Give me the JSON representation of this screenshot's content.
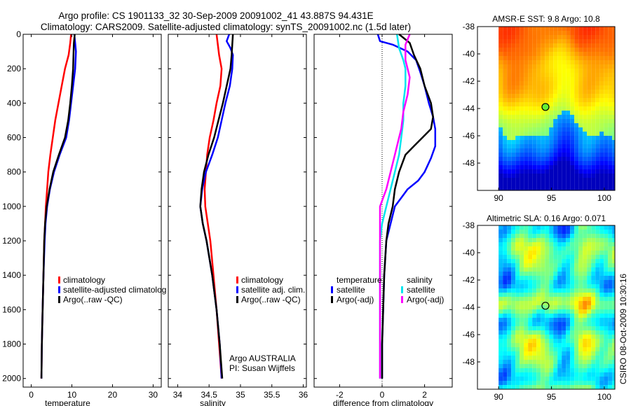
{
  "header": {
    "line1": "Argo profile: CS 1901133_32 30-Sep-2009 20091002_41 43.887S 94.431E",
    "line2": "Climatology: CARS2009. Satellite-adjusted climatology: synTS_20091002.nc (1.5d later)"
  },
  "footer_note": "CSIRO 08-Oct-2009 10:30:16",
  "colors": {
    "climatology": "#ff0000",
    "satellite": "#0000ff",
    "argo": "#000000",
    "sal_satellite": "#00e5ee",
    "sal_argo": "#ff00ff",
    "float_marker": "#66ee33"
  },
  "chart_data": [
    {
      "type": "line",
      "panel": "temperature",
      "xlabel": "temperature",
      "ylabel": "",
      "xlim": [
        -2,
        32
      ],
      "ylim": [
        2050,
        0
      ],
      "xticks": [
        0,
        10,
        20,
        30
      ],
      "yticks": [
        0,
        200,
        400,
        600,
        800,
        1000,
        1200,
        1400,
        1600,
        1800,
        2000
      ],
      "legend": [
        "climatology",
        "satellite-adjusted climatolog",
        "Argo(..raw -QC)"
      ],
      "series": [
        {
          "name": "climatology",
          "color_key": "climatology",
          "points": [
            [
              9.8,
              0
            ],
            [
              9.6,
              50
            ],
            [
              9.2,
              120
            ],
            [
              8.3,
              200
            ],
            [
              7.5,
              300
            ],
            [
              6.7,
              400
            ],
            [
              5.9,
              500
            ],
            [
              5.3,
              600
            ],
            [
              4.7,
              700
            ],
            [
              4.2,
              800
            ],
            [
              3.9,
              900
            ],
            [
              3.6,
              1000
            ],
            [
              3.4,
              1100
            ],
            [
              3.2,
              1200
            ],
            [
              3.0,
              1400
            ],
            [
              2.8,
              1600
            ],
            [
              2.6,
              1800
            ],
            [
              2.5,
              2000
            ]
          ]
        },
        {
          "name": "satellite-adjusted climatolog",
          "color_key": "satellite",
          "points": [
            [
              10.6,
              0
            ],
            [
              10.8,
              50
            ],
            [
              11.0,
              100
            ],
            [
              10.8,
              200
            ],
            [
              10.3,
              300
            ],
            [
              9.8,
              400
            ],
            [
              9.3,
              500
            ],
            [
              8.6,
              600
            ],
            [
              7.0,
              700
            ],
            [
              5.6,
              800
            ],
            [
              4.6,
              900
            ],
            [
              3.9,
              1000
            ],
            [
              3.5,
              1100
            ],
            [
              3.3,
              1200
            ],
            [
              3.0,
              1400
            ],
            [
              2.8,
              1600
            ],
            [
              2.6,
              1800
            ],
            [
              2.5,
              2000
            ]
          ]
        },
        {
          "name": "Argo(..raw -QC)",
          "color_key": "argo",
          "points": [
            [
              10.7,
              0
            ],
            [
              10.5,
              50
            ],
            [
              10.4,
              120
            ],
            [
              10.3,
              200
            ],
            [
              10.0,
              300
            ],
            [
              9.6,
              400
            ],
            [
              9.1,
              500
            ],
            [
              8.3,
              600
            ],
            [
              6.8,
              700
            ],
            [
              5.4,
              800
            ],
            [
              4.5,
              900
            ],
            [
              3.8,
              1000
            ],
            [
              3.4,
              1100
            ],
            [
              3.2,
              1200
            ],
            [
              3.0,
              1400
            ],
            [
              2.8,
              1600
            ],
            [
              2.6,
              1800
            ],
            [
              2.5,
              2000
            ]
          ]
        }
      ]
    },
    {
      "type": "line",
      "panel": "salinity",
      "xlabel": "salinity",
      "xlim": [
        33.85,
        36.05
      ],
      "ylim": [
        2050,
        0
      ],
      "xticks": [
        34,
        34.5,
        35,
        35.5,
        36
      ],
      "legend": [
        "climatology",
        "satellite adj. clim.",
        "Argo(..raw -QC)"
      ],
      "annotation": [
        "Argo AUSTRALIA",
        "PI: Susan Wijffels"
      ],
      "series": [
        {
          "name": "climatology",
          "color_key": "climatology",
          "points": [
            [
              34.62,
              0
            ],
            [
              34.64,
              60
            ],
            [
              34.66,
              120
            ],
            [
              34.7,
              200
            ],
            [
              34.68,
              300
            ],
            [
              34.62,
              400
            ],
            [
              34.57,
              500
            ],
            [
              34.51,
              600
            ],
            [
              34.47,
              700
            ],
            [
              34.45,
              800
            ],
            [
              34.43,
              900
            ],
            [
              34.44,
              1000
            ],
            [
              34.48,
              1100
            ],
            [
              34.52,
              1200
            ],
            [
              34.57,
              1400
            ],
            [
              34.62,
              1600
            ],
            [
              34.66,
              1800
            ],
            [
              34.7,
              2000
            ]
          ]
        },
        {
          "name": "satellite adj. clim.",
          "color_key": "satellite",
          "points": [
            [
              34.82,
              0
            ],
            [
              34.78,
              40
            ],
            [
              34.84,
              80
            ],
            [
              34.88,
              120
            ],
            [
              34.87,
              200
            ],
            [
              34.83,
              300
            ],
            [
              34.76,
              400
            ],
            [
              34.7,
              500
            ],
            [
              34.64,
              600
            ],
            [
              34.55,
              700
            ],
            [
              34.45,
              800
            ],
            [
              34.39,
              900
            ],
            [
              34.36,
              1000
            ],
            [
              34.4,
              1100
            ],
            [
              34.46,
              1200
            ],
            [
              34.55,
              1400
            ],
            [
              34.62,
              1600
            ],
            [
              34.67,
              1800
            ],
            [
              34.7,
              2000
            ]
          ]
        },
        {
          "name": "Argo(..raw -QC)",
          "color_key": "argo",
          "points": [
            [
              34.88,
              0
            ],
            [
              34.87,
              60
            ],
            [
              34.86,
              120
            ],
            [
              34.84,
              200
            ],
            [
              34.78,
              300
            ],
            [
              34.72,
              400
            ],
            [
              34.65,
              500
            ],
            [
              34.58,
              600
            ],
            [
              34.49,
              700
            ],
            [
              34.42,
              800
            ],
            [
              34.38,
              900
            ],
            [
              34.36,
              1000
            ],
            [
              34.4,
              1100
            ],
            [
              34.46,
              1200
            ],
            [
              34.55,
              1400
            ],
            [
              34.62,
              1600
            ],
            [
              34.67,
              1800
            ],
            [
              34.71,
              2000
            ]
          ]
        }
      ]
    },
    {
      "type": "line",
      "panel": "difference",
      "xlabel": "difference from climatology",
      "xlim": [
        -3.2,
        3.3
      ],
      "ylim": [
        2050,
        0
      ],
      "xticks": [
        -2,
        0,
        2
      ],
      "legend_columns": [
        {
          "title": "temperature",
          "items": [
            "satellite",
            "Argo(-adj)"
          ]
        },
        {
          "title": "salinity",
          "items": [
            "satellite",
            "Argo(-adj)"
          ]
        }
      ],
      "series": [
        {
          "name": "temperature satellite",
          "color_key": "satellite",
          "points": [
            [
              -0.2,
              0
            ],
            [
              -0.1,
              40
            ],
            [
              0.5,
              60
            ],
            [
              1.2,
              100
            ],
            [
              1.6,
              150
            ],
            [
              1.8,
              220
            ],
            [
              2.0,
              300
            ],
            [
              2.2,
              400
            ],
            [
              2.4,
              480
            ],
            [
              2.5,
              550
            ],
            [
              2.5,
              650
            ],
            [
              2.3,
              720
            ],
            [
              2.0,
              800
            ],
            [
              1.7,
              850
            ],
            [
              1.2,
              900
            ],
            [
              0.9,
              950
            ],
            [
              0.6,
              1000
            ],
            [
              0.4,
              1100
            ],
            [
              0.2,
              1200
            ],
            [
              0.1,
              1400
            ],
            [
              0.05,
              1600
            ],
            [
              0.0,
              1800
            ],
            [
              0.0,
              2000
            ]
          ]
        },
        {
          "name": "temperature Argo(-adj)",
          "color_key": "argo",
          "points": [
            [
              0.8,
              0
            ],
            [
              1.3,
              50
            ],
            [
              1.5,
              120
            ],
            [
              1.8,
              200
            ],
            [
              2.0,
              300
            ],
            [
              2.3,
              400
            ],
            [
              2.4,
              480
            ],
            [
              2.3,
              550
            ],
            [
              1.9,
              600
            ],
            [
              1.5,
              650
            ],
            [
              1.1,
              700
            ],
            [
              0.8,
              800
            ],
            [
              0.6,
              900
            ],
            [
              0.5,
              1000
            ],
            [
              0.3,
              1100
            ],
            [
              0.2,
              1200
            ],
            [
              0.1,
              1400
            ],
            [
              0.05,
              1600
            ],
            [
              0.0,
              1800
            ],
            [
              0.0,
              2000
            ]
          ]
        },
        {
          "name": "salinity satellite",
          "color_key": "sal_satellite",
          "points": [
            [
              0.7,
              0
            ],
            [
              0.8,
              80
            ],
            [
              1.0,
              150
            ],
            [
              1.1,
              200
            ],
            [
              1.1,
              300
            ],
            [
              1.0,
              400
            ],
            [
              1.0,
              500
            ],
            [
              0.9,
              600
            ],
            [
              0.8,
              700
            ],
            [
              0.6,
              800
            ],
            [
              0.4,
              900
            ],
            [
              0.2,
              1000
            ],
            [
              0.0,
              1100
            ],
            [
              -0.1,
              1200
            ],
            [
              -0.1,
              1400
            ],
            [
              -0.1,
              1600
            ],
            [
              -0.1,
              1800
            ],
            [
              -0.1,
              2000
            ]
          ]
        },
        {
          "name": "salinity Argo(-adj)",
          "color_key": "sal_argo",
          "points": [
            [
              1.3,
              0
            ],
            [
              1.1,
              60
            ],
            [
              1.1,
              150
            ],
            [
              1.2,
              200
            ],
            [
              1.3,
              250
            ],
            [
              1.2,
              350
            ],
            [
              1.0,
              450
            ],
            [
              0.9,
              550
            ],
            [
              0.8,
              600
            ],
            [
              0.6,
              700
            ],
            [
              0.4,
              800
            ],
            [
              0.2,
              900
            ],
            [
              -0.1,
              1000
            ],
            [
              -0.1,
              1100
            ],
            [
              -0.1,
              1200
            ],
            [
              -0.1,
              1400
            ],
            [
              -0.1,
              1600
            ],
            [
              -0.1,
              1800
            ],
            [
              -0.1,
              2000
            ]
          ]
        }
      ]
    },
    {
      "type": "heatmap",
      "panel": "sst",
      "title": "AMSR-E SST: 9.8 Argo: 10.8",
      "xlim": [
        88,
        101
      ],
      "ylim": [
        -50,
        -38
      ],
      "xticks": [
        90,
        95,
        100
      ],
      "yticks": [
        -38,
        -40,
        -42,
        -44,
        -46,
        -48
      ],
      "float_position": [
        94.431,
        -43.887
      ]
    },
    {
      "type": "heatmap",
      "panel": "sla",
      "title": "Altimetric SLA: 0.16 Argo: 0.071",
      "xlim": [
        88,
        101
      ],
      "ylim": [
        -50,
        -38
      ],
      "xticks": [
        90,
        95,
        100
      ],
      "yticks": [
        -38,
        -40,
        -42,
        -44,
        -46,
        -48
      ],
      "float_position": [
        94.431,
        -43.887
      ]
    }
  ]
}
